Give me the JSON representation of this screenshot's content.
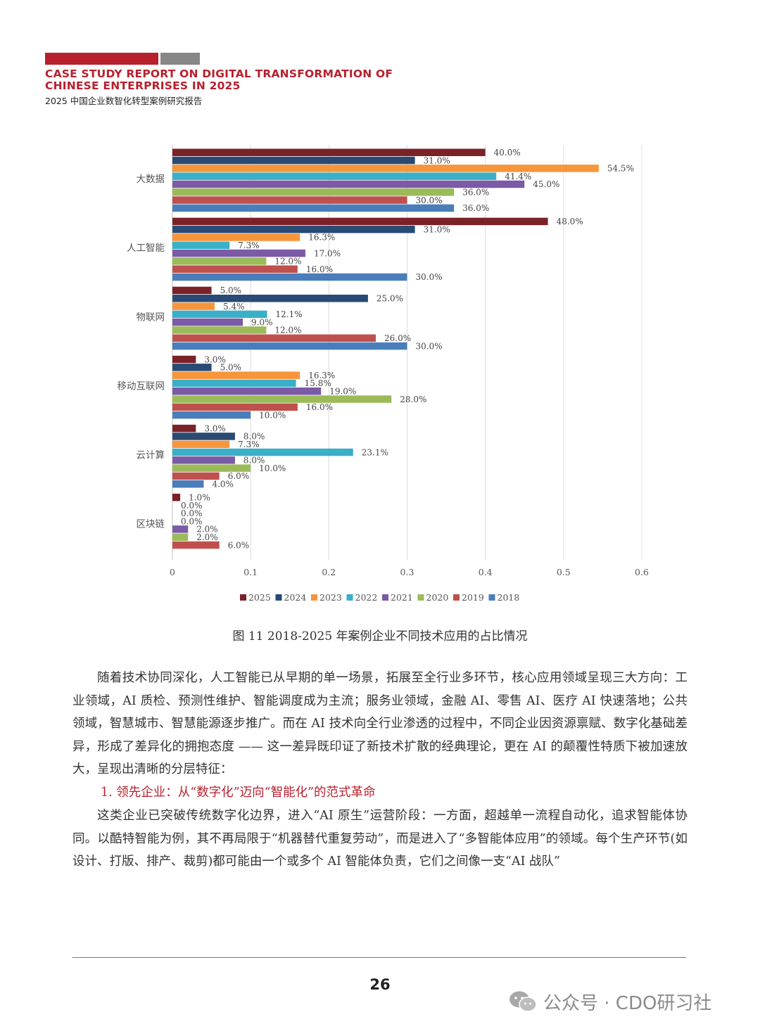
{
  "header": {
    "title_en_line1": "CASE STUDY REPORT ON DIGITAL TRANSFORMATION OF",
    "title_en_line2": "CHINESE ENTERPRISES IN 2025",
    "title_cn": "2025 中国企业数智化转型案例研究报告",
    "accent_color": "#b8202e",
    "grey_color": "#878787"
  },
  "chart_data": {
    "type": "bar",
    "orientation": "horizontal",
    "categories": [
      "大数据",
      "人工智能",
      "物联网",
      "移动互联网",
      "云计算",
      "区块链"
    ],
    "series": [
      {
        "name": "2025",
        "color": "#7b2128",
        "values": [
          0.4,
          0.48,
          0.05,
          0.03,
          0.03,
          0.01
        ],
        "labels": [
          "40.0%",
          "48.0%",
          "5.0%",
          "3.0%",
          "3.0%",
          "1.0%"
        ]
      },
      {
        "name": "2024",
        "color": "#284a74",
        "values": [
          0.31,
          0.31,
          0.25,
          0.05,
          0.08,
          0.0
        ],
        "labels": [
          "31.0%",
          "31.0%",
          "25.0%",
          "5.0%",
          "8.0%",
          "0.0%"
        ]
      },
      {
        "name": "2023",
        "color": "#f7953b",
        "values": [
          0.545,
          0.163,
          0.054,
          0.163,
          0.073,
          0.0
        ],
        "labels": [
          "54.5%",
          "16.3%",
          "5.4%",
          "16.3%",
          "7.3%",
          "0.0%"
        ]
      },
      {
        "name": "2022",
        "color": "#3aafc7",
        "values": [
          0.414,
          0.073,
          0.121,
          0.158,
          0.231,
          0.0
        ],
        "labels": [
          "41.4%",
          "7.3%",
          "12.1%",
          "15.8%",
          "23.1%",
          "0.0%"
        ]
      },
      {
        "name": "2021",
        "color": "#7b5aa6",
        "values": [
          0.45,
          0.17,
          0.09,
          0.19,
          0.08,
          0.02
        ],
        "labels": [
          "45.0%",
          "17.0%",
          "9.0%",
          "19.0%",
          "8.0%",
          "2.0%"
        ]
      },
      {
        "name": "2020",
        "color": "#9bbb59",
        "values": [
          0.36,
          0.12,
          0.12,
          0.28,
          0.1,
          0.02
        ],
        "labels": [
          "36.0%",
          "12.0%",
          "12.0%",
          "28.0%",
          "10.0%",
          "2.0%"
        ]
      },
      {
        "name": "2019",
        "color": "#c0504d",
        "values": [
          0.3,
          0.16,
          0.26,
          0.16,
          0.06,
          0.06
        ],
        "labels": [
          "30.0%",
          "16.0%",
          "26.0%",
          "16.0%",
          "6.0%",
          "6.0%"
        ]
      },
      {
        "name": "2018",
        "color": "#4a7ebb",
        "values": [
          0.36,
          0.3,
          0.3,
          0.1,
          0.04,
          null
        ],
        "labels": [
          "36.0%",
          "30.0%",
          "30.0%",
          "10.0%",
          "4.0%",
          null
        ]
      }
    ],
    "x_ticks": [
      "0",
      "0.1",
      "0.2",
      "0.3",
      "0.4",
      "0.5",
      "0.6"
    ],
    "xlim": [
      0,
      0.6
    ],
    "grid": true,
    "legend_position": "bottom",
    "title": "",
    "xlabel": "",
    "ylabel": ""
  },
  "caption": "图 11 2018-2025 年案例企业不同技术应用的占比情况",
  "body": {
    "paragraph1": "随着技术协同深化，人工智能已从早期的单一场景，拓展至全行业多环节，核心应用领域呈现三大方向：工业领域，AI 质检、预测性维护、智能调度成为主流；服务业领域，金融 AI、零售 AI、医疗 AI 快速落地；公共领域，智慧城市、智慧能源逐步推广。而在 AI 技术向全行业渗透的过程中，不同企业因资源禀赋、数字化基础差异，形成了差异化的拥抱态度 —— 这一差异既印证了新技术扩散的经典理论，更在 AI 的颠覆性特质下被加速放大，呈现出清晰的分层特征：",
    "subheading": "1. 领先企业：从“数字化”迈向“智能化”的范式革命",
    "paragraph2": "这类企业已突破传统数字化边界，进入“AI 原生”运营阶段：一方面，超越单一流程自动化，追求智能体协同。以酷特智能为例，其不再局限于“机器替代重复劳动”，而是进入了“多智能体应用”的领域。每个生产环节(如设计、打版、排产、裁剪)都可能由一个或多个 AI 智能体负责，它们之间像一支“AI 战队”"
  },
  "footer": {
    "page_number": "26",
    "watermark": "公众号 · CDO研习社"
  }
}
